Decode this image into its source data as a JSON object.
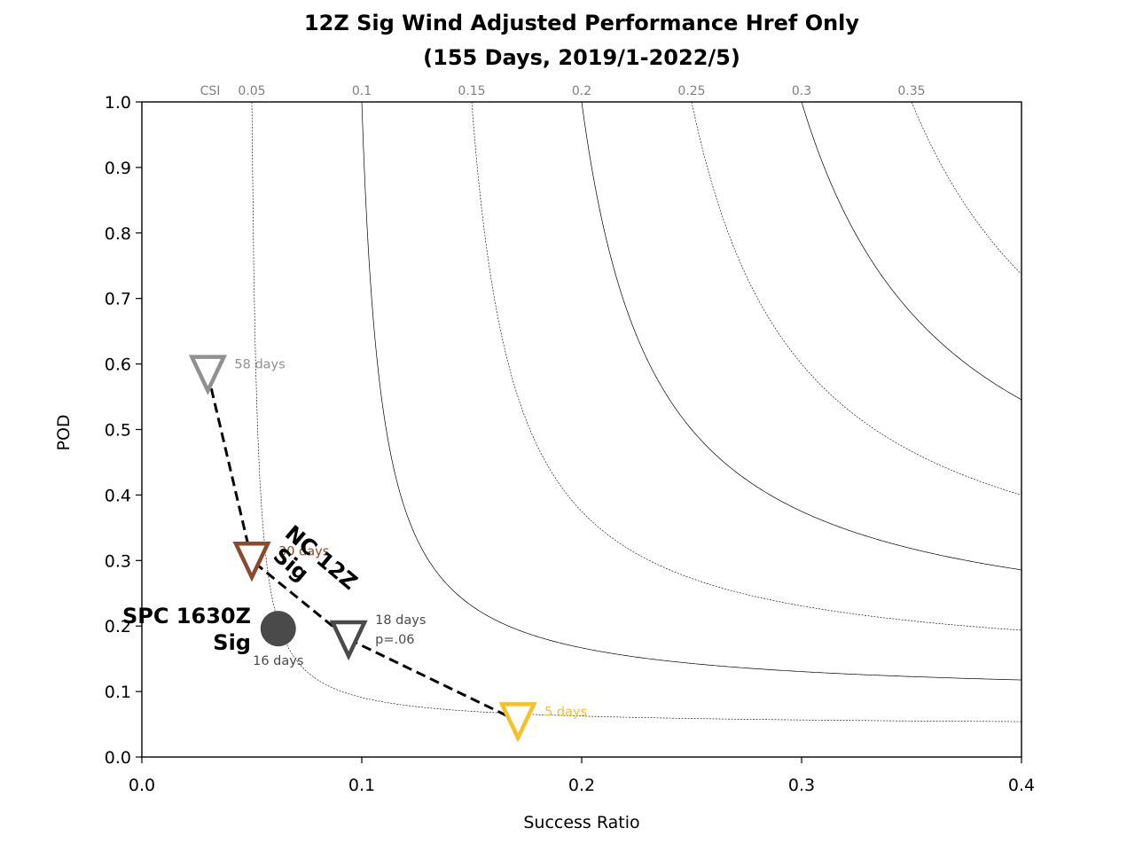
{
  "chart_data": {
    "type": "scatter",
    "title_lines": [
      "12Z Sig Wind Adjusted Performance Href Only",
      "(155 Days, 2019/1-2022/5)"
    ],
    "xlabel": "Success Ratio",
    "ylabel": "POD",
    "xlim": [
      0.0,
      0.4
    ],
    "ylim": [
      0.0,
      1.0
    ],
    "x_ticks": [
      "0.0",
      "0.1",
      "0.2",
      "0.3",
      "0.4"
    ],
    "y_ticks": [
      "0.0",
      "0.1",
      "0.2",
      "0.3",
      "0.4",
      "0.5",
      "0.6",
      "0.7",
      "0.8",
      "0.9",
      "1.0"
    ],
    "csi_axis_label": "CSI",
    "csi_contours": [
      {
        "value": 0.05,
        "label": "0.05",
        "style": "dotted"
      },
      {
        "value": 0.1,
        "label": "0.1",
        "style": "solid"
      },
      {
        "value": 0.15,
        "label": "0.15",
        "style": "dotted"
      },
      {
        "value": 0.2,
        "label": "0.2",
        "style": "solid"
      },
      {
        "value": 0.25,
        "label": "0.25",
        "style": "dotted"
      },
      {
        "value": 0.3,
        "label": "0.3",
        "style": "solid"
      },
      {
        "value": 0.35,
        "label": "0.35",
        "style": "dotted"
      }
    ],
    "series": [
      {
        "marker": "triangle-down",
        "line_color": "#000000",
        "points": [
          {
            "x": 0.03,
            "y": 0.585,
            "label": "58 days",
            "color": "#909090"
          },
          {
            "x": 0.05,
            "y": 0.3,
            "label": "30 days",
            "color": "#8b4a2b"
          },
          {
            "x": 0.094,
            "y": 0.18,
            "label_lines": [
              "18 days",
              "p=.06"
            ],
            "color": "#4a4a4a"
          },
          {
            "x": 0.171,
            "y": 0.055,
            "label": "5 days",
            "color": "#f5c02a"
          }
        ]
      },
      {
        "marker": "circle",
        "points": [
          {
            "x": 0.062,
            "y": 0.196,
            "label": "16 days",
            "color": "#4a4a4a"
          }
        ]
      }
    ],
    "annotations": [
      {
        "lines": [
          "SPC 1630Z",
          "Sig"
        ]
      },
      {
        "lines": [
          "NC 12Z",
          "Sig"
        ]
      }
    ],
    "grid": false
  }
}
